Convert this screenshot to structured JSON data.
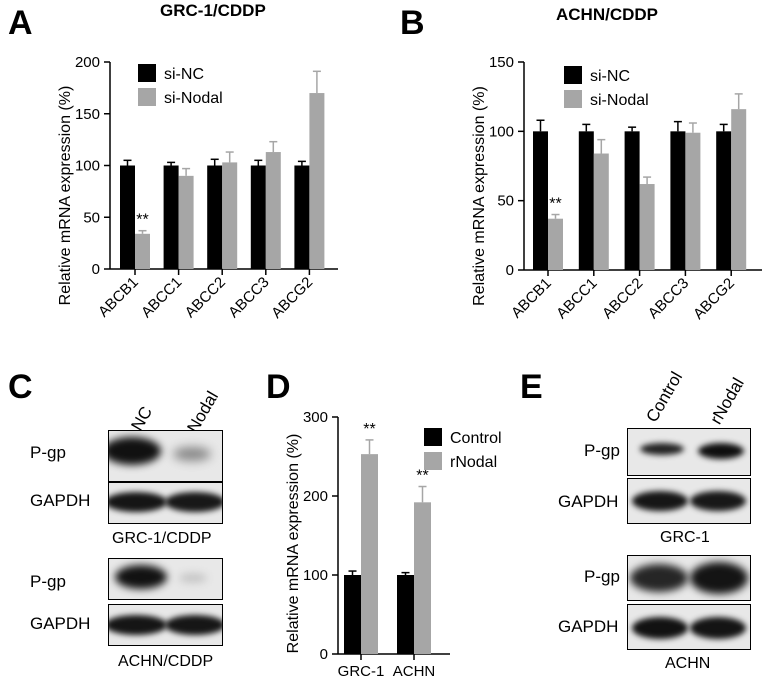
{
  "panels": {
    "A": "A",
    "B": "B",
    "C": "C",
    "D": "D",
    "E": "E"
  },
  "colors": {
    "control": "#000000",
    "treatment": "#a6a6a6",
    "blot_bg": "#e6e6e6",
    "band": "#141414"
  },
  "panel_A": {
    "title": "GRC-1/CDDP"
  },
  "panel_B": {
    "title": "ACHN/CDDP"
  },
  "panel_C": {
    "lanes": [
      "si-NC",
      "si-Nodal"
    ],
    "blot1": {
      "rows": [
        "P-gp",
        "GAPDH"
      ],
      "caption": "GRC-1/CDDP"
    },
    "blot2": {
      "rows": [
        "P-gp",
        "GAPDH"
      ],
      "caption": "ACHN/CDDP"
    }
  },
  "panel_E": {
    "lanes": [
      "Control",
      "rNodal"
    ],
    "blot1": {
      "rows": [
        "P-gp",
        "GAPDH"
      ],
      "caption": "GRC-1"
    },
    "blot2": {
      "rows": [
        "P-gp",
        "GAPDH"
      ],
      "caption": "ACHN"
    }
  },
  "chart_data": [
    {
      "panel": "A",
      "type": "bar",
      "title": "GRC-1/CDDP",
      "xlabel": "",
      "ylabel": "Relative mRNA expression (%)",
      "ylim": [
        0,
        200
      ],
      "yticks": [
        0,
        50,
        100,
        150,
        200
      ],
      "categories": [
        "ABCB1",
        "ABCC1",
        "ABCC2",
        "ABCC3",
        "ABCG2"
      ],
      "series": [
        {
          "name": "si-NC",
          "values": [
            100,
            100,
            100,
            100,
            100
          ],
          "errors": [
            5,
            3,
            6,
            5,
            4
          ]
        },
        {
          "name": "si-Nodal",
          "values": [
            34,
            90,
            103,
            113,
            170
          ],
          "errors": [
            3,
            7,
            10,
            10,
            21
          ]
        }
      ],
      "annotations": [
        {
          "category": "ABCB1",
          "series": "si-Nodal",
          "text": "**"
        }
      ],
      "legend": "top-left"
    },
    {
      "panel": "B",
      "type": "bar",
      "title": "ACHN/CDDP",
      "xlabel": "",
      "ylabel": "Relative mRNA expression (%)",
      "ylim": [
        0,
        150
      ],
      "yticks": [
        0,
        50,
        100,
        150
      ],
      "categories": [
        "ABCB1",
        "ABCC1",
        "ABCC2",
        "ABCC3",
        "ABCG2"
      ],
      "series": [
        {
          "name": "si-NC",
          "values": [
            100,
            100,
            100,
            100,
            100
          ],
          "errors": [
            8,
            5,
            3,
            7,
            5
          ]
        },
        {
          "name": "si-Nodal",
          "values": [
            37,
            84,
            62,
            99,
            116
          ],
          "errors": [
            3,
            10,
            5,
            7,
            11
          ]
        }
      ],
      "annotations": [
        {
          "category": "ABCB1",
          "series": "si-Nodal",
          "text": "**"
        }
      ],
      "legend": "top-left"
    },
    {
      "panel": "D",
      "type": "bar",
      "title": "",
      "xlabel": "",
      "ylabel": "Relative mRNA expression (%)",
      "ylim": [
        0,
        300
      ],
      "yticks": [
        0,
        100,
        200,
        300
      ],
      "categories": [
        "GRC-1",
        "ACHN"
      ],
      "series": [
        {
          "name": "Control",
          "values": [
            100,
            100
          ],
          "errors": [
            5,
            3
          ]
        },
        {
          "name": "rNodal",
          "values": [
            253,
            192
          ],
          "errors": [
            18,
            20
          ]
        }
      ],
      "annotations": [
        {
          "category": "GRC-1",
          "series": "rNodal",
          "text": "**"
        },
        {
          "category": "ACHN",
          "series": "rNodal",
          "text": "**"
        }
      ],
      "legend": "top-right"
    }
  ]
}
